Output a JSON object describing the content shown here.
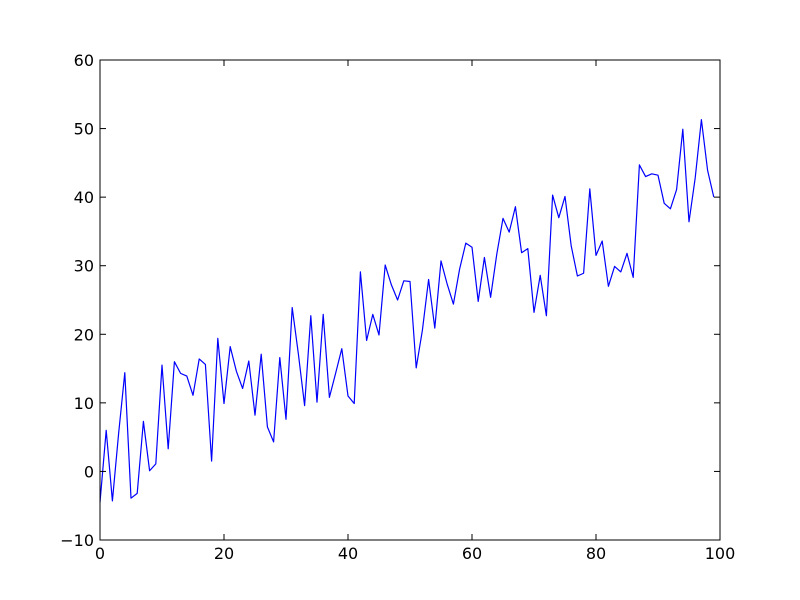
{
  "chart_data": {
    "type": "line",
    "title": "",
    "xlabel": "",
    "ylabel": "",
    "xlim": [
      0,
      100
    ],
    "ylim": [
      -10,
      60
    ],
    "xticks": [
      0,
      20,
      40,
      60,
      80,
      100
    ],
    "yticks": [
      -10,
      0,
      10,
      20,
      30,
      40,
      50,
      60
    ],
    "grid": false,
    "legend": "none",
    "colors": {
      "line": "#0000ff",
      "axes": "#000000",
      "background": "#ffffff"
    },
    "series": [
      {
        "x": [
          0,
          1,
          2,
          3,
          4,
          5,
          6,
          7,
          8,
          9,
          10,
          11,
          12,
          13,
          14,
          15,
          16,
          17,
          18,
          19,
          20,
          21,
          22,
          23,
          24,
          25,
          26,
          27,
          28,
          29,
          30,
          31,
          32,
          33,
          34,
          35,
          36,
          37,
          38,
          39,
          40,
          41,
          42,
          43,
          44,
          45,
          46,
          47,
          48,
          49,
          50,
          51,
          52,
          53,
          54,
          55,
          56,
          57,
          58,
          59,
          60,
          61,
          62,
          63,
          64,
          65,
          66,
          67,
          68,
          69,
          70,
          71,
          72,
          73,
          74,
          75,
          76,
          77,
          78,
          79,
          80,
          81,
          82,
          83,
          84,
          85,
          86,
          87,
          88,
          89,
          90,
          91,
          92,
          93,
          94,
          95,
          96,
          97,
          98,
          99
        ],
        "values": [
          -4.5,
          6.0,
          -4.3,
          5.5,
          14.4,
          -3.9,
          -3.2,
          7.3,
          0.1,
          1.1,
          15.5,
          3.3,
          16.0,
          14.3,
          13.9,
          11.1,
          16.4,
          15.6,
          1.5,
          19.4,
          9.9,
          18.2,
          14.6,
          12.1,
          16.1,
          8.2,
          17.1,
          6.5,
          4.3,
          16.6,
          7.6,
          23.9,
          17.1,
          9.6,
          22.7,
          10.1,
          22.9,
          10.8,
          14.3,
          17.9,
          11.0,
          9.9,
          29.1,
          19.1,
          22.9,
          19.9,
          30.1,
          27.2,
          25.0,
          27.8,
          27.7,
          15.1,
          20.6,
          28.0,
          20.9,
          30.7,
          27.3,
          24.4,
          29.5,
          33.3,
          32.7,
          24.8,
          31.2,
          25.4,
          31.7,
          36.9,
          34.9,
          38.6,
          31.9,
          32.5,
          23.2,
          28.6,
          22.7,
          40.3,
          37.0,
          40.1,
          32.9,
          28.5,
          28.9,
          41.2,
          31.5,
          33.6,
          27.0,
          29.9,
          29.1,
          31.8,
          28.3,
          44.7,
          43.0,
          43.4,
          43.2,
          39.1,
          38.3,
          41.1,
          49.9,
          36.4,
          42.8,
          51.3,
          43.9,
          40.0
        ]
      }
    ]
  }
}
